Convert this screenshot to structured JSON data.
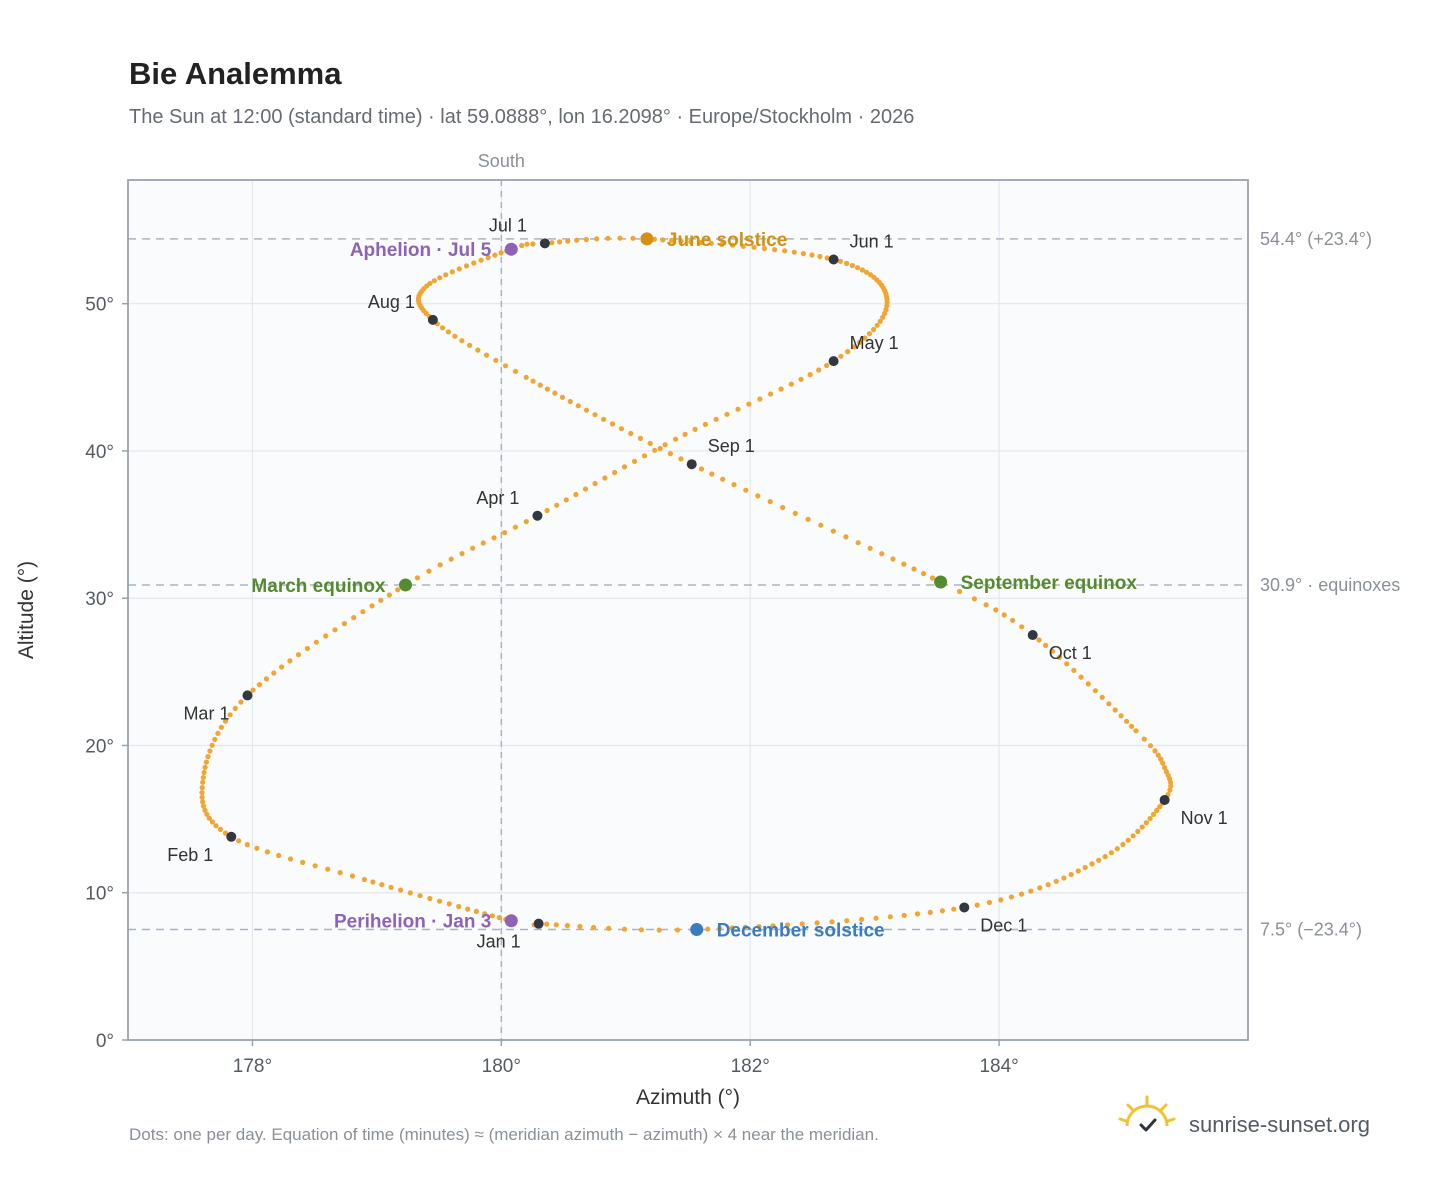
{
  "chart_data": {
    "type": "scatter",
    "title": "Bie Analemma",
    "subtitle": "The Sun at 12:00 (standard time) · lat 59.0888°, lon 16.2098° · Europe/Stockholm · 2026",
    "xlabel": "Azimuth (°)",
    "ylabel": "Altitude (°)",
    "xlim": [
      177,
      186
    ],
    "ylim": [
      0,
      58.4
    ],
    "x_ticks": [
      178,
      180,
      182,
      184
    ],
    "x_tick_labels": [
      "178°",
      "180°",
      "182°",
      "184°"
    ],
    "y_ticks": [
      0,
      10,
      20,
      30,
      40,
      50
    ],
    "y_tick_labels": [
      "0°",
      "10°",
      "20°",
      "30°",
      "40°",
      "50°"
    ],
    "grid": true,
    "colors": {
      "dots": "#f2a530",
      "month": "#333840",
      "aphelion": "#8e63b5",
      "perihelion": "#8e63b5",
      "equinox": "#558b2f",
      "june_solstice": "#d4900e",
      "december_solstice": "#3a7cc0",
      "ref_line": "#aab4c0"
    },
    "meridian": {
      "x": 180,
      "label": "South"
    },
    "reference_lines": [
      {
        "y": 54.4,
        "label": "54.4° (+23.4°)"
      },
      {
        "y": 30.9,
        "label": "30.9° · equinoxes"
      },
      {
        "y": 7.5,
        "label": "7.5° (−23.4°)"
      }
    ],
    "anchors": [
      {
        "doy": 1,
        "x": 180.3,
        "y": 7.9
      },
      {
        "doy": 3,
        "x": 180.08,
        "y": 8.1
      },
      {
        "doy": 20,
        "x": 178.9,
        "y": 10.9
      },
      {
        "doy": 32,
        "x": 177.83,
        "y": 13.8
      },
      {
        "doy": 45,
        "x": 177.6,
        "y": 17.5
      },
      {
        "doy": 60,
        "x": 177.96,
        "y": 23.4
      },
      {
        "doy": 79,
        "x": 179.23,
        "y": 30.9
      },
      {
        "doy": 91,
        "x": 180.29,
        "y": 35.6
      },
      {
        "doy": 105,
        "x": 181.4,
        "y": 40.8
      },
      {
        "doy": 121,
        "x": 182.67,
        "y": 46.1
      },
      {
        "doy": 135,
        "x": 183.1,
        "y": 50.1
      },
      {
        "doy": 152,
        "x": 182.67,
        "y": 53.0
      },
      {
        "doy": 172,
        "x": 181.17,
        "y": 54.4
      },
      {
        "doy": 182,
        "x": 180.35,
        "y": 54.1
      },
      {
        "doy": 186,
        "x": 180.08,
        "y": 53.7
      },
      {
        "doy": 200,
        "x": 179.4,
        "y": 51.2
      },
      {
        "doy": 213,
        "x": 179.45,
        "y": 48.9
      },
      {
        "doy": 225,
        "x": 180.2,
        "y": 45.0
      },
      {
        "doy": 244,
        "x": 181.53,
        "y": 39.1
      },
      {
        "doy": 266,
        "x": 183.53,
        "y": 31.1
      },
      {
        "doy": 274,
        "x": 184.27,
        "y": 27.5
      },
      {
        "doy": 290,
        "x": 185.1,
        "y": 21.0
      },
      {
        "doy": 297,
        "x": 185.33,
        "y": 18.5
      },
      {
        "doy": 305,
        "x": 185.33,
        "y": 16.3
      },
      {
        "doy": 320,
        "x": 184.8,
        "y": 12.2
      },
      {
        "doy": 335,
        "x": 183.72,
        "y": 9.0
      },
      {
        "doy": 355,
        "x": 181.57,
        "y": 7.5
      },
      {
        "doy": 366,
        "x": 180.3,
        "y": 7.9
      }
    ],
    "months": [
      {
        "label": "Jan 1",
        "x": 180.3,
        "y": 7.9,
        "pos": "below-left"
      },
      {
        "label": "Feb 1",
        "x": 177.83,
        "y": 13.8,
        "pos": "below-left"
      },
      {
        "label": "Mar 1",
        "x": 177.96,
        "y": 23.4,
        "pos": "below-left"
      },
      {
        "label": "Apr 1",
        "x": 180.29,
        "y": 35.6,
        "pos": "above-left"
      },
      {
        "label": "May 1",
        "x": 182.67,
        "y": 46.1,
        "pos": "above-right"
      },
      {
        "label": "Jun 1",
        "x": 182.67,
        "y": 53.0,
        "pos": "above-right"
      },
      {
        "label": "Jul 1",
        "x": 180.35,
        "y": 54.1,
        "pos": "above-left"
      },
      {
        "label": "Aug 1",
        "x": 179.45,
        "y": 48.9,
        "pos": "above-left"
      },
      {
        "label": "Sep 1",
        "x": 181.53,
        "y": 39.1,
        "pos": "above-right"
      },
      {
        "label": "Oct 1",
        "x": 184.27,
        "y": 27.5,
        "pos": "below-right"
      },
      {
        "label": "Nov 1",
        "x": 185.33,
        "y": 16.3,
        "pos": "below-right"
      },
      {
        "label": "Dec 1",
        "x": 183.72,
        "y": 9.0,
        "pos": "below-right"
      }
    ],
    "events": [
      {
        "label": "Aphelion · Jul 5",
        "x": 180.08,
        "y": 53.7,
        "color": "#8e63b5",
        "pos": "left"
      },
      {
        "label": "June solstice",
        "x": 181.17,
        "y": 54.4,
        "color": "#d4900e",
        "pos": "right"
      },
      {
        "label": "March equinox",
        "x": 179.23,
        "y": 30.9,
        "color": "#558b2f",
        "pos": "left"
      },
      {
        "label": "September equinox",
        "x": 183.53,
        "y": 31.1,
        "color": "#558b2f",
        "pos": "right"
      },
      {
        "label": "Perihelion · Jan 3",
        "x": 180.08,
        "y": 8.1,
        "color": "#8e63b5",
        "pos": "left"
      },
      {
        "label": "December solstice",
        "x": 181.57,
        "y": 7.5,
        "color": "#3a7cc0",
        "pos": "right"
      }
    ]
  },
  "footer": {
    "note": "Dots: one per day. Equation of time (minutes) ≈ (meridian azimuth − azimuth) × 4 near the meridian.",
    "brand": "sunrise-sunset.org",
    "brand_icon": "sun-icon"
  }
}
